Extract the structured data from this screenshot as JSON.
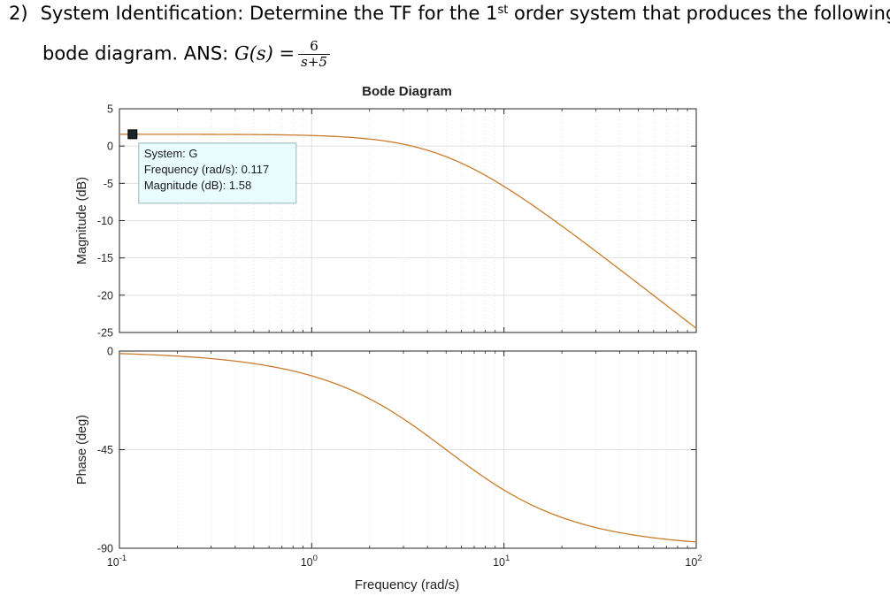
{
  "question": {
    "number": "2)",
    "line1_before_sup": "System Identification: Determine the TF for the 1",
    "line1_sup": "st",
    "line1_after_sup": " order system that produces the following",
    "line2_text": "bode diagram.  ANS: ",
    "ans_lhs": "G(s) =",
    "ans_numerator": "6",
    "ans_denominator": "s+5"
  },
  "chart_data": {
    "type": "line",
    "title": "Bode Diagram",
    "xlabel": "Frequency  (rad/s)",
    "xscale": "log",
    "xlim": [
      0.1,
      100
    ],
    "x_ticks": [
      {
        "base": "10",
        "exp": "-1"
      },
      {
        "base": "10",
        "exp": "0"
      },
      {
        "base": "10",
        "exp": "1"
      },
      {
        "base": "10",
        "exp": "2"
      }
    ],
    "grid": true,
    "line_color": "#c87c2c",
    "transfer_function": {
      "gain": 6,
      "pole": 5
    },
    "panels": [
      {
        "name": "magnitude",
        "ylabel": "Magnitude (dB)",
        "ylim": [
          -25,
          5
        ],
        "y_ticks": [
          "5",
          "0",
          "-5",
          "-10",
          "-15",
          "-20",
          "-25"
        ],
        "series": [
          {
            "x": [
              0.1,
              0.2,
              0.5,
              1,
              2,
              3,
              5,
              10,
              20,
              50,
              100
            ],
            "y": [
              1.58,
              1.57,
              1.54,
              1.41,
              0.94,
              0.26,
              -1.43,
              -5.41,
              -10.7,
              -18.5,
              -24.45
            ]
          }
        ]
      },
      {
        "name": "phase",
        "ylabel": "Phase (deg)",
        "ylim": [
          -90,
          0
        ],
        "y_ticks": [
          "0",
          "-45",
          "-90"
        ],
        "series": [
          {
            "x": [
              0.1,
              0.2,
              0.5,
              1,
              2,
              3,
              5,
              10,
              20,
              50,
              100
            ],
            "y": [
              -1.15,
              -2.29,
              -5.71,
              -11.3,
              -21.8,
              -31.0,
              -45,
              -63.4,
              -76.0,
              -84.3,
              -87.1
            ]
          }
        ]
      }
    ],
    "datatip": {
      "marker_x": 0.117,
      "marker_y": 1.58,
      "lines": [
        "System: G",
        "Frequency (rad/s): 0.117",
        "Magnitude (dB): 1.58"
      ],
      "background": "#e9fcfe"
    }
  }
}
